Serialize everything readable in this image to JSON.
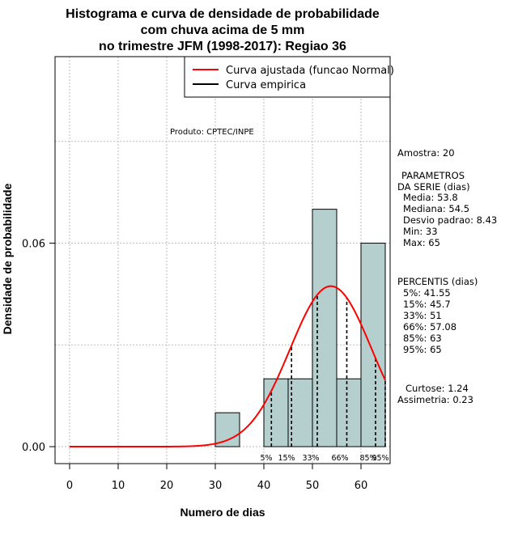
{
  "chart_data": {
    "type": "bar",
    "title_lines": [
      "Histograma e curva de densidade de probabilidade",
      "com chuva acima de 5 mm",
      "no trimestre JFM (1998-2017): Regiao 36"
    ],
    "xlabel": "Numero de dias",
    "ylabel": "Densidade de probabilidade",
    "xlim": [
      -3,
      66
    ],
    "ylim": [
      -0.005,
      0.115
    ],
    "xticks": [
      0,
      10,
      20,
      30,
      40,
      50,
      60
    ],
    "yticks": [
      0.0,
      0.06
    ],
    "ytick_labels": [
      "0.00",
      "0.06"
    ],
    "grid": true,
    "bins": [
      {
        "from": 30,
        "to": 35,
        "density": 0.01
      },
      {
        "from": 35,
        "to": 40,
        "density": 0.0
      },
      {
        "from": 40,
        "to": 45,
        "density": 0.02
      },
      {
        "from": 45,
        "to": 50,
        "density": 0.02
      },
      {
        "from": 50,
        "to": 55,
        "density": 0.07
      },
      {
        "from": 55,
        "to": 60,
        "density": 0.02
      },
      {
        "from": 60,
        "to": 65,
        "density": 0.06
      }
    ],
    "normal_fit": {
      "mean": 53.8,
      "sd": 8.43,
      "x_from": 0,
      "x_to": 65
    },
    "percentile_lines": [
      {
        "label": "5%",
        "value": 41.55
      },
      {
        "label": "15%",
        "value": 45.7
      },
      {
        "label": "33%",
        "value": 51
      },
      {
        "label": "66%",
        "value": 57.08
      },
      {
        "label": "85%",
        "value": 63
      },
      {
        "label": "95%",
        "value": 65
      }
    ],
    "legend": {
      "position": "top-right",
      "entries": [
        {
          "label": "Curva ajustada (funcao Normal)",
          "color": "#ff0000"
        },
        {
          "label": "Curva empirica",
          "color": "#000000"
        }
      ]
    },
    "annotation": "Produto: CPTEC/INPE",
    "colors": {
      "bar_fill": "#b5cfcf",
      "fit_line": "#ff0000",
      "grid": "#bebebe"
    }
  },
  "sidebar": {
    "lines": [
      "Amostra: 20",
      "",
      "PARAMETROS",
      "DA SERIE (dias)",
      "Media: 53.8",
      "Mediana: 54.5",
      "Desvio padrao: 8.43",
      "Min: 33",
      "Max: 65",
      "",
      "PERCENTIS (dias)",
      "5%: 41.55",
      "15%: 45.7",
      "33%: 51",
      "66%: 57.08",
      "85%: 63",
      "95%: 65",
      "",
      "Curtose: 1.24",
      "Assimetria: 0.23"
    ]
  }
}
